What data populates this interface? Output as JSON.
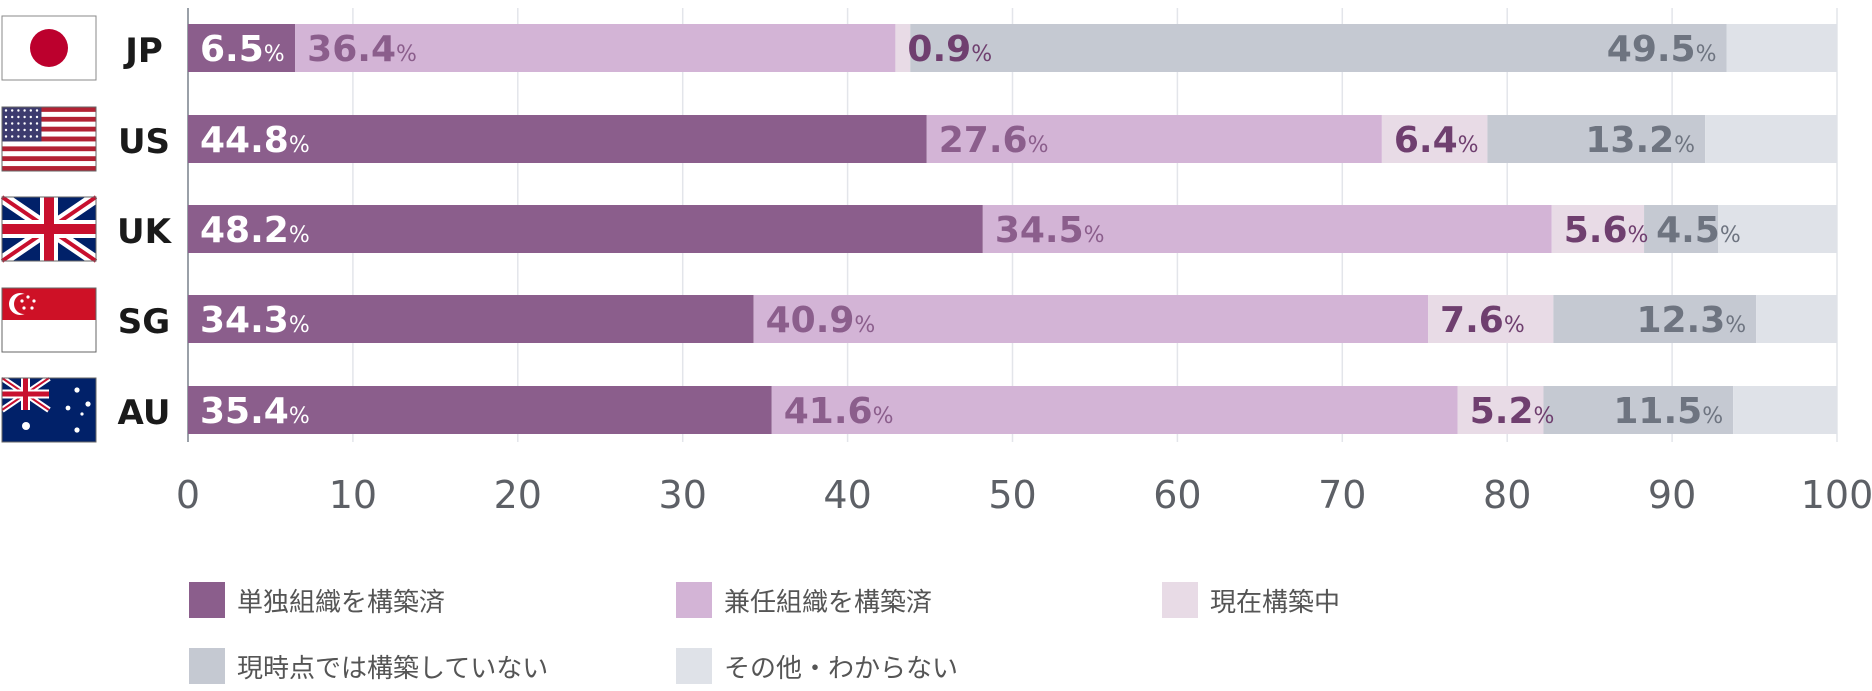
{
  "chart_data": {
    "type": "bar",
    "orientation": "horizontal",
    "stacked": true,
    "categories": [
      "JP",
      "US",
      "UK",
      "SG",
      "AU"
    ],
    "series": [
      {
        "name": "単独組織を構築済",
        "color": "#8b5e8c",
        "label_color": "#ffffff",
        "values": [
          6.5,
          44.8,
          48.2,
          34.3,
          35.4
        ]
      },
      {
        "name": "兼任組織を構築済",
        "color": "#d3b4d6",
        "label_color": "#8b5e8c",
        "values": [
          36.4,
          27.6,
          34.5,
          40.9,
          41.6
        ]
      },
      {
        "name": "現在構築中",
        "color": "#e8dbe6",
        "label_color": "#6f3f6f",
        "values": [
          0.9,
          6.4,
          5.6,
          7.6,
          5.2
        ]
      },
      {
        "name": "現時点では構築していない",
        "color": "#c5c9d2",
        "label_color": "#6e7480",
        "values": [
          49.5,
          13.2,
          4.5,
          12.3,
          11.5
        ]
      },
      {
        "name": "その他・わからない",
        "color": "#dfe2e8",
        "label_color": "#6e7480",
        "values": [
          6.7,
          8.0,
          7.2,
          4.9,
          6.3
        ]
      }
    ],
    "data_labels": {
      "JP": [
        "6.5",
        "36.4",
        "0.9",
        "49.5",
        ""
      ],
      "US": [
        "44.8",
        "27.6",
        "6.4",
        "13.2",
        ""
      ],
      "UK": [
        "48.2",
        "34.5",
        "5.6",
        "4.5",
        ""
      ],
      "SG": [
        "34.3",
        "40.9",
        "7.6",
        "12.3",
        ""
      ],
      "AU": [
        "35.4",
        "41.6",
        "5.2",
        "11.5",
        ""
      ]
    },
    "percent_sign": "%",
    "xlim": [
      0,
      100
    ],
    "xticks": [
      "0",
      "10",
      "20",
      "30",
      "40",
      "50",
      "60",
      "70",
      "80",
      "90",
      "100"
    ],
    "grid": true,
    "legend_position": "bottom",
    "flags": [
      {
        "country": "JP",
        "icon": "japan-flag-icon"
      },
      {
        "country": "US",
        "icon": "usa-flag-icon"
      },
      {
        "country": "UK",
        "icon": "uk-flag-icon"
      },
      {
        "country": "SG",
        "icon": "singapore-flag-icon"
      },
      {
        "country": "AU",
        "icon": "australia-flag-icon"
      }
    ]
  }
}
